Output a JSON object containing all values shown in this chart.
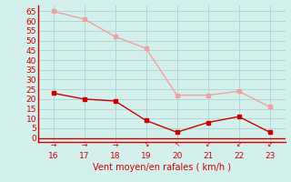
{
  "x": [
    16,
    17,
    18,
    19,
    20,
    21,
    22,
    23
  ],
  "y_gusts": [
    65,
    61,
    52,
    46,
    22,
    22,
    24,
    16
  ],
  "y_avg": [
    23,
    20,
    19,
    9,
    3,
    8,
    11,
    3
  ],
  "line_color_gusts": "#f0a0a0",
  "line_color_avg": "#cc0000",
  "xlabel": "Vent moyen/en rafales ( km/h )",
  "xlabel_color": "#cc0000",
  "xlabel_fontsize": 7,
  "bg_color": "#d4f0ec",
  "grid_color": "#b0d8d4",
  "tick_color": "#cc0000",
  "axis_color": "#cc0000",
  "yticks": [
    0,
    5,
    10,
    15,
    20,
    25,
    30,
    35,
    40,
    45,
    50,
    55,
    60,
    65
  ],
  "xticks": [
    16,
    17,
    18,
    19,
    20,
    21,
    22,
    23
  ],
  "ylim": [
    -2,
    68
  ],
  "xlim": [
    15.5,
    23.5
  ],
  "arrow_symbols": [
    "→",
    "→",
    "→",
    "↘",
    "↖",
    "↙",
    "↙",
    "↙"
  ],
  "arrow_color": "#cc0000"
}
